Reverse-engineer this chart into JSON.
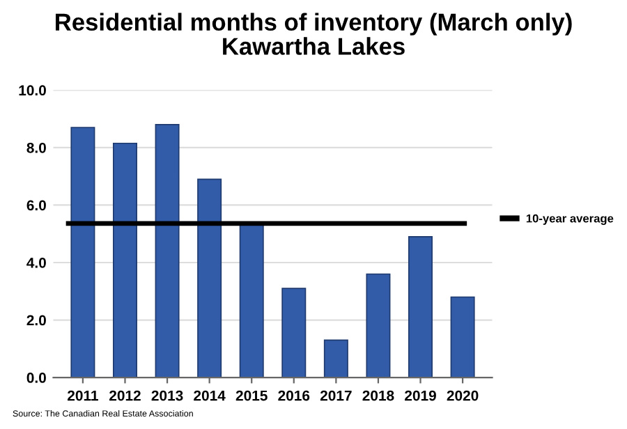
{
  "chart_data": {
    "type": "bar",
    "title": "Residential months of inventory (March only)\nKawartha Lakes",
    "categories": [
      "2011",
      "2012",
      "2013",
      "2014",
      "2015",
      "2016",
      "2017",
      "2018",
      "2019",
      "2020"
    ],
    "values": [
      8.7,
      8.15,
      8.8,
      6.9,
      5.35,
      3.1,
      1.3,
      3.6,
      4.9,
      2.8
    ],
    "color": "#325ca8",
    "ylim": [
      0,
      10
    ],
    "yticks": [
      {
        "value": 0,
        "label": "0.0"
      },
      {
        "value": 2,
        "label": "2.0"
      },
      {
        "value": 4,
        "label": "4.0"
      },
      {
        "value": 6,
        "label": "6.0"
      },
      {
        "value": 8,
        "label": "8.0"
      },
      {
        "value": 10,
        "label": "10.0"
      }
    ],
    "ref_lines": [
      {
        "axis": "y",
        "value": 5.36,
        "label": "10-year average",
        "color": "#000000",
        "line_style": "solid"
      }
    ],
    "grid": "y",
    "legend": "right",
    "annotations": [
      "Source: The Canadian Real Estate Association"
    ]
  }
}
